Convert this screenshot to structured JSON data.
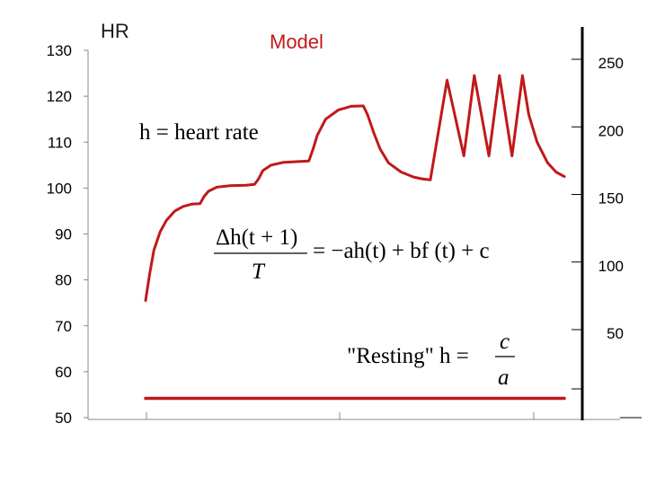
{
  "chart_data": {
    "type": "line",
    "title": "",
    "left_axis": {
      "label": "HR",
      "ylim": [
        50,
        130
      ],
      "ticks": [
        130,
        120,
        110,
        100,
        90,
        80,
        70,
        60,
        50
      ]
    },
    "right_axis": {
      "ylim": [
        50,
        250
      ],
      "ticks": [
        250,
        200,
        150,
        100,
        50
      ]
    },
    "series_label": "Model",
    "series": [
      {
        "name": "heart rate (model)",
        "color": "#c0191b",
        "points": [
          [
            0.0,
            75.5
          ],
          [
            0.01,
            81.5
          ],
          [
            0.02,
            86.5
          ],
          [
            0.035,
            90.5
          ],
          [
            0.05,
            93.0
          ],
          [
            0.07,
            95.0
          ],
          [
            0.09,
            96.0
          ],
          [
            0.11,
            96.5
          ],
          [
            0.13,
            96.6
          ],
          [
            0.14,
            98.2
          ],
          [
            0.15,
            99.3
          ],
          [
            0.17,
            100.2
          ],
          [
            0.2,
            100.5
          ],
          [
            0.24,
            100.6
          ],
          [
            0.26,
            100.8
          ],
          [
            0.27,
            102.0
          ],
          [
            0.28,
            103.8
          ],
          [
            0.3,
            105.0
          ],
          [
            0.33,
            105.6
          ],
          [
            0.37,
            105.8
          ],
          [
            0.39,
            105.9
          ],
          [
            0.4,
            108.5
          ],
          [
            0.41,
            111.5
          ],
          [
            0.43,
            115.0
          ],
          [
            0.46,
            117.0
          ],
          [
            0.49,
            117.8
          ],
          [
            0.52,
            117.9
          ],
          [
            0.53,
            116.0
          ],
          [
            0.545,
            112.0
          ],
          [
            0.56,
            108.5
          ],
          [
            0.58,
            105.5
          ],
          [
            0.61,
            103.5
          ],
          [
            0.64,
            102.4
          ],
          [
            0.66,
            102.0
          ],
          [
            0.68,
            101.8
          ],
          [
            0.72,
            123.5
          ],
          [
            0.76,
            107.0
          ],
          [
            0.785,
            124.5
          ],
          [
            0.82,
            107.0
          ],
          [
            0.845,
            124.5
          ],
          [
            0.875,
            107.0
          ],
          [
            0.9,
            124.5
          ],
          [
            0.915,
            116.0
          ],
          [
            0.935,
            110.0
          ],
          [
            0.96,
            105.5
          ],
          [
            0.98,
            103.5
          ],
          [
            1.0,
            102.5
          ]
        ]
      },
      {
        "name": "resting",
        "color": "#c0191b",
        "points": [
          [
            0.0,
            54.2
          ],
          [
            1.0,
            54.2
          ]
        ]
      }
    ],
    "annotations": {
      "def": "h = heart rate",
      "eq_lhs_num": "Δh(t + 1)",
      "eq_lhs_den": "T",
      "eq_rhs": "= −ah(t) + bf (t) + c",
      "rest_label": "\"Resting\" h =",
      "rest_num": "c",
      "rest_den": "a"
    },
    "grid": false,
    "legend": "none"
  }
}
